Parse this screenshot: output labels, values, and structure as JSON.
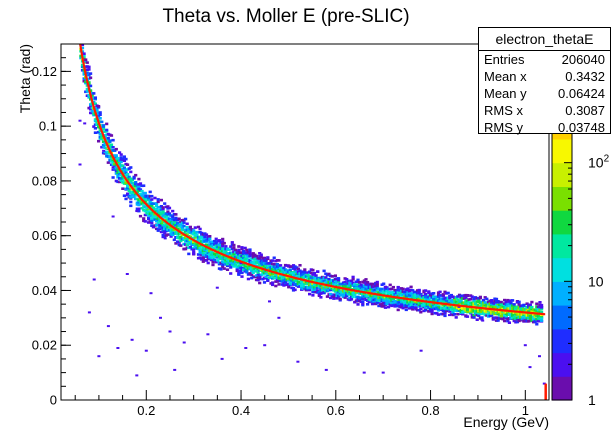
{
  "chart_data": {
    "type": "heatmap",
    "title": "Theta vs. Moller E (pre-SLIC)",
    "xlabel": "Energy (GeV)",
    "ylabel": "Theta (rad)",
    "xlim": [
      0.02,
      1.05
    ],
    "ylim": [
      0,
      0.13
    ],
    "x_ticks": [
      {
        "v": 0.2,
        "label": "0.2"
      },
      {
        "v": 0.4,
        "label": "0.4"
      },
      {
        "v": 0.6,
        "label": "0.6"
      },
      {
        "v": 0.8,
        "label": "0.8"
      },
      {
        "v": 1.0,
        "label": "1"
      }
    ],
    "y_ticks": [
      {
        "v": 0,
        "label": "0"
      },
      {
        "v": 0.02,
        "label": "0.02"
      },
      {
        "v": 0.04,
        "label": "0.04"
      },
      {
        "v": 0.06,
        "label": "0.06"
      },
      {
        "v": 0.08,
        "label": "0.08"
      },
      {
        "v": 0.1,
        "label": "0.1"
      },
      {
        "v": 0.12,
        "label": "0.12"
      }
    ],
    "colorbar": {
      "scale": "log",
      "zlim": [
        1,
        1000
      ],
      "ticks": [
        {
          "v": 1,
          "label": "1"
        },
        {
          "v": 10,
          "label": "10"
        },
        {
          "v": 100,
          "label": "10",
          "exp": "2"
        }
      ],
      "top_label_exp": "3",
      "colors": [
        "#6a0dad",
        "#4b0ff0",
        "#1f2dff",
        "#006bff",
        "#00b0ff",
        "#00e0e0",
        "#00e8a0",
        "#10d840",
        "#7ae000",
        "#c8f000",
        "#f8f800",
        "#ffd000",
        "#ff9000",
        "#ff4000",
        "#f00000"
      ]
    },
    "curve": {
      "color": "#ff1a00",
      "description_ref": "theta = sqrt(2*m/E)",
      "mass_gev": 0.000511
    },
    "scatter_points": [
      [
        0.11,
        0.091
      ],
      [
        0.13,
        0.085
      ],
      [
        0.06,
        0.086
      ],
      [
        0.06,
        0.102
      ],
      [
        0.07,
        0.101
      ],
      [
        0.09,
        0.044
      ],
      [
        0.08,
        0.032
      ],
      [
        0.1,
        0.016
      ],
      [
        0.12,
        0.027
      ],
      [
        0.14,
        0.019
      ],
      [
        0.16,
        0.046
      ],
      [
        0.17,
        0.022
      ],
      [
        0.18,
        0.009
      ],
      [
        0.2,
        0.018
      ],
      [
        0.21,
        0.039
      ],
      [
        0.23,
        0.03
      ],
      [
        0.25,
        0.025
      ],
      [
        0.26,
        0.011
      ],
      [
        0.28,
        0.021
      ],
      [
        0.3,
        0.055
      ],
      [
        0.33,
        0.024
      ],
      [
        0.36,
        0.015
      ],
      [
        0.4,
        0.05
      ],
      [
        0.41,
        0.019
      ],
      [
        0.45,
        0.02
      ],
      [
        0.48,
        0.03
      ],
      [
        0.52,
        0.014
      ],
      [
        0.58,
        0.011
      ],
      [
        0.66,
        0.01
      ],
      [
        0.7,
        0.01
      ],
      [
        0.78,
        0.018
      ],
      [
        0.84,
        0.031
      ],
      [
        0.86,
        0.034
      ],
      [
        0.91,
        0.029
      ],
      [
        1.0,
        0.02
      ],
      [
        1.01,
        0.012
      ],
      [
        1.03,
        0.016
      ],
      [
        1.04,
        0.006
      ],
      [
        0.44,
        0.045
      ],
      [
        0.35,
        0.041
      ],
      [
        0.18,
        0.069
      ],
      [
        0.13,
        0.067
      ],
      [
        0.24,
        0.059
      ],
      [
        0.46,
        0.036
      ]
    ]
  },
  "stats": {
    "title": "electron_thetaE",
    "rows": [
      {
        "label": "Entries",
        "value": "206040"
      },
      {
        "label": "Mean x",
        "value": "0.3432"
      },
      {
        "label": "Mean y",
        "value": "0.06424"
      },
      {
        "label": "RMS x",
        "value": "0.3087"
      },
      {
        "label": "RMS y",
        "value": "0.03748"
      }
    ]
  }
}
